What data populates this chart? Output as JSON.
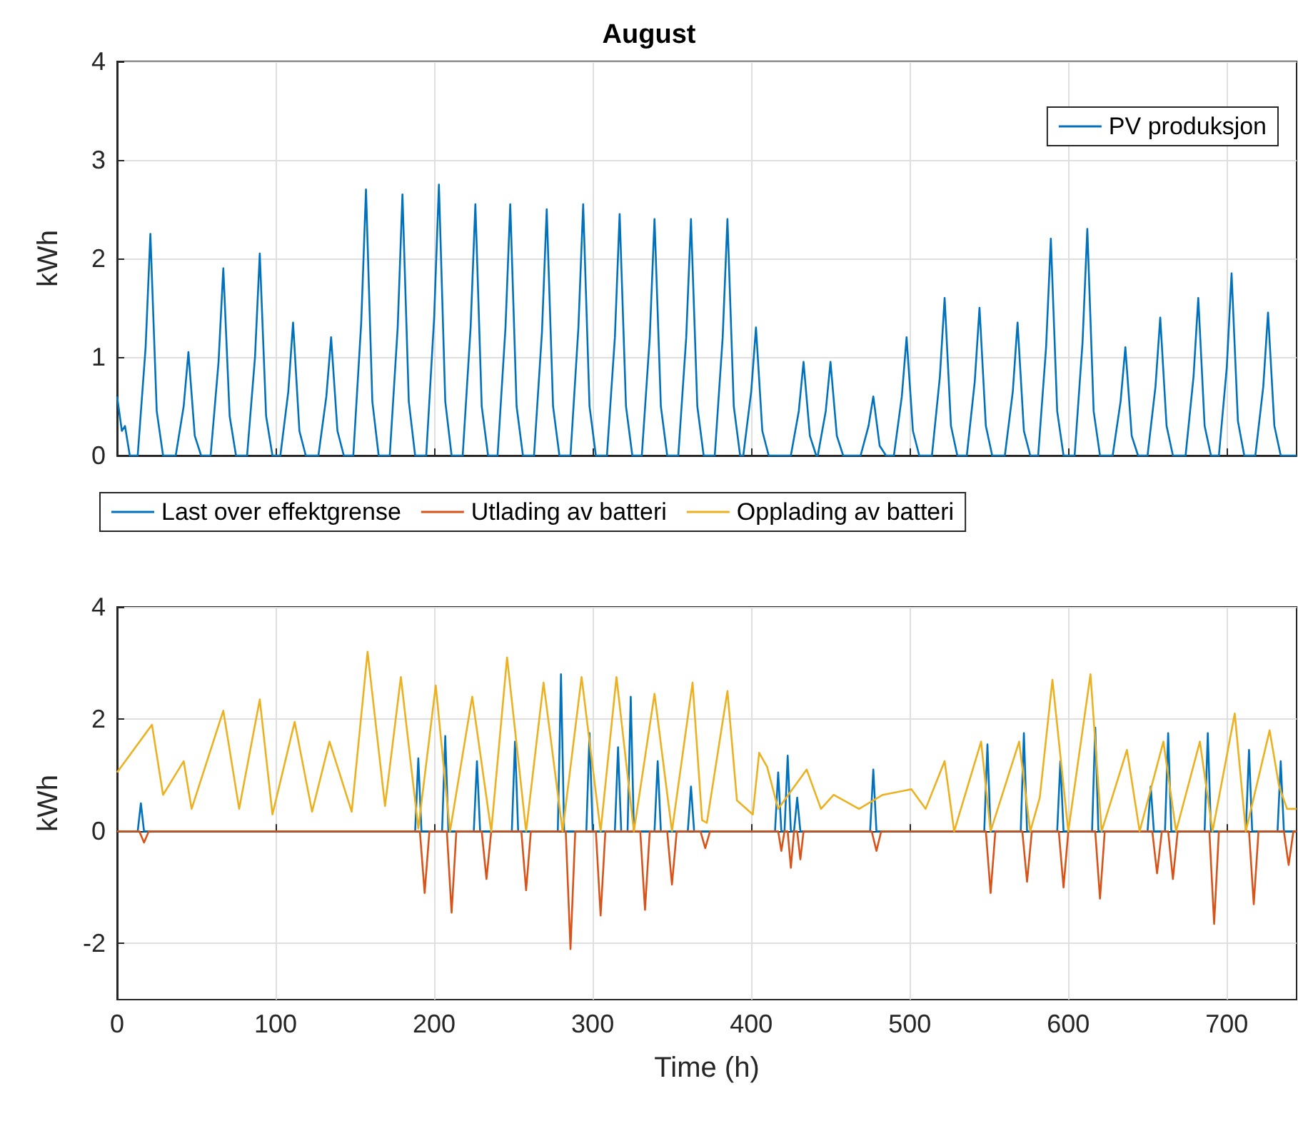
{
  "chart_data": [
    {
      "type": "line",
      "title": "August",
      "ylabel": "kWh",
      "xlim": [
        0,
        744
      ],
      "xticks": [
        0,
        100,
        200,
        300,
        400,
        500,
        600,
        700
      ],
      "ylim": [
        0,
        4
      ],
      "yticks": [
        0,
        1,
        2,
        3,
        4
      ],
      "grid": true,
      "legend": "top right",
      "tick_labels": "y",
      "marker": "none",
      "line_style": "solid",
      "series": [
        {
          "name": "PV produksjon",
          "color": "#0072bd",
          "x": [
            0,
            3,
            5,
            8,
            13,
            18,
            21,
            25,
            29,
            37,
            42,
            45,
            49,
            53,
            59,
            64,
            67,
            71,
            75,
            82,
            87,
            90,
            94,
            98,
            103,
            108,
            111,
            115,
            119,
            127,
            132,
            135,
            139,
            143,
            149,
            154,
            157,
            161,
            165,
            172,
            177,
            180,
            184,
            188,
            195,
            200,
            203,
            207,
            211,
            218,
            223,
            226,
            230,
            234,
            240,
            245,
            248,
            252,
            256,
            263,
            268,
            271,
            275,
            279,
            286,
            291,
            294,
            298,
            302,
            309,
            314,
            317,
            321,
            325,
            331,
            336,
            339,
            343,
            347,
            354,
            359,
            362,
            366,
            370,
            377,
            382,
            385,
            389,
            393,
            395,
            400,
            403,
            407,
            411,
            425,
            430,
            433,
            437,
            441,
            442,
            447,
            450,
            454,
            458,
            469,
            474,
            477,
            481,
            485,
            490,
            495,
            498,
            502,
            506,
            514,
            519,
            522,
            526,
            530,
            536,
            541,
            544,
            548,
            552,
            560,
            565,
            568,
            572,
            576,
            581,
            586,
            589,
            593,
            597,
            604,
            609,
            612,
            616,
            620,
            628,
            633,
            636,
            640,
            644,
            650,
            655,
            658,
            662,
            666,
            674,
            679,
            682,
            686,
            690,
            695,
            700,
            703,
            707,
            711,
            718,
            723,
            726,
            730,
            734,
            744
          ],
          "values": [
            0.6,
            0.25,
            0.3,
            0,
            0,
            1.1,
            2.25,
            0.45,
            0,
            0,
            0.5,
            1.05,
            0.2,
            0,
            0,
            0.95,
            1.9,
            0.4,
            0,
            0,
            1,
            2.05,
            0.4,
            0,
            0,
            0.65,
            1.35,
            0.25,
            0,
            0,
            0.6,
            1.2,
            0.25,
            0,
            0,
            1.35,
            2.7,
            0.55,
            0,
            0,
            1.3,
            2.65,
            0.55,
            0,
            0,
            1.4,
            2.75,
            0.55,
            0,
            0,
            1.3,
            2.55,
            0.5,
            0,
            0,
            1.3,
            2.55,
            0.5,
            0,
            0,
            1.25,
            2.5,
            0.5,
            0,
            0,
            1.3,
            2.55,
            0.5,
            0,
            0,
            1.2,
            2.45,
            0.5,
            0,
            0,
            1.2,
            2.4,
            0.5,
            0,
            0,
            1.2,
            2.4,
            0.5,
            0,
            0,
            1.2,
            2.4,
            0.5,
            0,
            0,
            0.65,
            1.3,
            0.25,
            0,
            0,
            0.45,
            0.95,
            0.2,
            0,
            0,
            0.45,
            0.95,
            0.2,
            0,
            0,
            0.3,
            0.6,
            0.1,
            0,
            0,
            0.6,
            1.2,
            0.25,
            0,
            0,
            0.8,
            1.6,
            0.3,
            0,
            0,
            0.75,
            1.5,
            0.3,
            0,
            0,
            0.65,
            1.35,
            0.25,
            0,
            0,
            1.1,
            2.2,
            0.45,
            0,
            0,
            1.15,
            2.3,
            0.45,
            0,
            0,
            0.55,
            1.1,
            0.2,
            0,
            0,
            0.7,
            1.4,
            0.3,
            0,
            0,
            0.8,
            1.6,
            0.3,
            0,
            0,
            0.9,
            1.85,
            0.35,
            0,
            0,
            0.7,
            1.45,
            0.3,
            0,
            0
          ]
        }
      ]
    },
    {
      "type": "line",
      "xlabel": "Time (h)",
      "ylabel": "kWh",
      "xlim": [
        0,
        744
      ],
      "xticks": [
        0,
        100,
        200,
        300,
        400,
        500,
        600,
        700
      ],
      "ylim": [
        -3,
        4
      ],
      "yticks": [
        -2,
        0,
        2,
        4
      ],
      "grid": true,
      "legend": "top",
      "marker": "none",
      "line_style": "solid",
      "series": [
        {
          "name": "Last over effektgrense",
          "color": "#0072bd",
          "x": [
            0,
            13,
            15,
            17,
            188,
            190,
            192,
            205,
            207,
            209,
            225,
            227,
            229,
            249,
            251,
            253,
            278,
            280,
            282,
            296,
            298,
            300,
            314,
            316,
            318,
            322,
            324,
            326,
            339,
            341,
            343,
            360,
            362,
            364,
            415,
            417,
            419,
            421,
            423,
            425,
            427,
            429,
            431,
            475,
            477,
            479,
            547,
            549,
            551,
            570,
            572,
            574,
            593,
            595,
            597,
            615,
            617,
            619,
            650,
            652,
            654,
            661,
            663,
            665,
            686,
            688,
            690,
            712,
            714,
            716,
            732,
            734,
            736,
            744
          ],
          "values": [
            0,
            0,
            0.5,
            0,
            0,
            1.3,
            0,
            0,
            1.7,
            0,
            0,
            1.25,
            0,
            0,
            1.6,
            0,
            0,
            2.8,
            0,
            0,
            1.75,
            0,
            0,
            1.5,
            0,
            0,
            2.4,
            0,
            0,
            1.25,
            0,
            0,
            0.8,
            0,
            0,
            1.05,
            0,
            0,
            1.35,
            0,
            0,
            0.6,
            0,
            0,
            1.1,
            0,
            0,
            1.55,
            0,
            0,
            1.75,
            0,
            0,
            1.25,
            0,
            0,
            1.85,
            0,
            0,
            0.8,
            0,
            0,
            1.75,
            0,
            0,
            1.75,
            0,
            0,
            1.45,
            0,
            0,
            1.25,
            0,
            0
          ]
        },
        {
          "name": "Utlading av batteri",
          "color": "#d95319",
          "x": [
            0,
            14,
            17,
            20,
            191,
            194,
            197,
            208,
            211,
            214,
            230,
            233,
            236,
            255,
            258,
            261,
            283,
            286,
            289,
            302,
            305,
            308,
            330,
            333,
            336,
            347,
            350,
            353,
            368,
            371,
            374,
            417,
            419,
            421,
            423,
            425,
            427,
            429,
            431,
            433,
            476,
            479,
            482,
            548,
            551,
            554,
            571,
            574,
            577,
            594,
            597,
            600,
            617,
            620,
            623,
            653,
            656,
            659,
            663,
            666,
            669,
            689,
            692,
            695,
            714,
            717,
            720,
            736,
            739,
            742,
            744
          ],
          "values": [
            0,
            0,
            -0.2,
            0,
            0,
            -1.1,
            0,
            0,
            -1.45,
            0,
            0,
            -0.85,
            0,
            0,
            -1.05,
            0,
            0,
            -2.1,
            0,
            0,
            -1.5,
            0,
            0,
            -1.4,
            0,
            0,
            -0.95,
            0,
            0,
            -0.3,
            0,
            0,
            -0.35,
            0,
            0,
            -0.65,
            0,
            0,
            -0.5,
            0,
            0,
            -0.35,
            0,
            0,
            -1.1,
            0,
            0,
            -0.9,
            0,
            0,
            -1,
            0,
            0,
            -1.2,
            0,
            0,
            -0.75,
            0,
            0,
            -0.85,
            0,
            0,
            -1.65,
            0,
            0,
            -1.3,
            0,
            0,
            -0.6,
            0,
            0
          ]
        },
        {
          "name": "Opplading av batteri",
          "color": "#edb120",
          "x": [
            0,
            22,
            29,
            42,
            47,
            67,
            77,
            90,
            98,
            112,
            123,
            134,
            148,
            158,
            169,
            179,
            190,
            201,
            210,
            224,
            236,
            246,
            258,
            269,
            281,
            293,
            305,
            315,
            326,
            339,
            350,
            363,
            369,
            372,
            385,
            391,
            401,
            405,
            410,
            417,
            435,
            444,
            452,
            468,
            483,
            501,
            510,
            522,
            528,
            545,
            551,
            569,
            576,
            582,
            590,
            600,
            614,
            621,
            637,
            645,
            660,
            668,
            683,
            691,
            705,
            712,
            727,
            733,
            738,
            744
          ],
          "values": [
            1.05,
            1.9,
            0.65,
            1.25,
            0.4,
            2.15,
            0.4,
            2.35,
            0.3,
            1.95,
            0.35,
            1.6,
            0.35,
            3.2,
            0.45,
            2.75,
            0.05,
            2.6,
            0,
            2.4,
            0,
            3.1,
            0,
            2.65,
            0,
            2.75,
            0,
            2.75,
            0,
            2.45,
            0,
            2.65,
            0.2,
            0.15,
            2.5,
            0.55,
            0.3,
            1.4,
            1.15,
            0.4,
            1.1,
            0.4,
            0.65,
            0.4,
            0.65,
            0.75,
            0.4,
            1.25,
            0,
            1.6,
            0,
            1.6,
            0,
            0.6,
            2.7,
            0,
            2.8,
            0,
            1.45,
            0,
            1.6,
            0,
            1.6,
            0,
            2.1,
            0,
            1.8,
            0.8,
            0.4,
            0.4
          ]
        }
      ]
    }
  ]
}
